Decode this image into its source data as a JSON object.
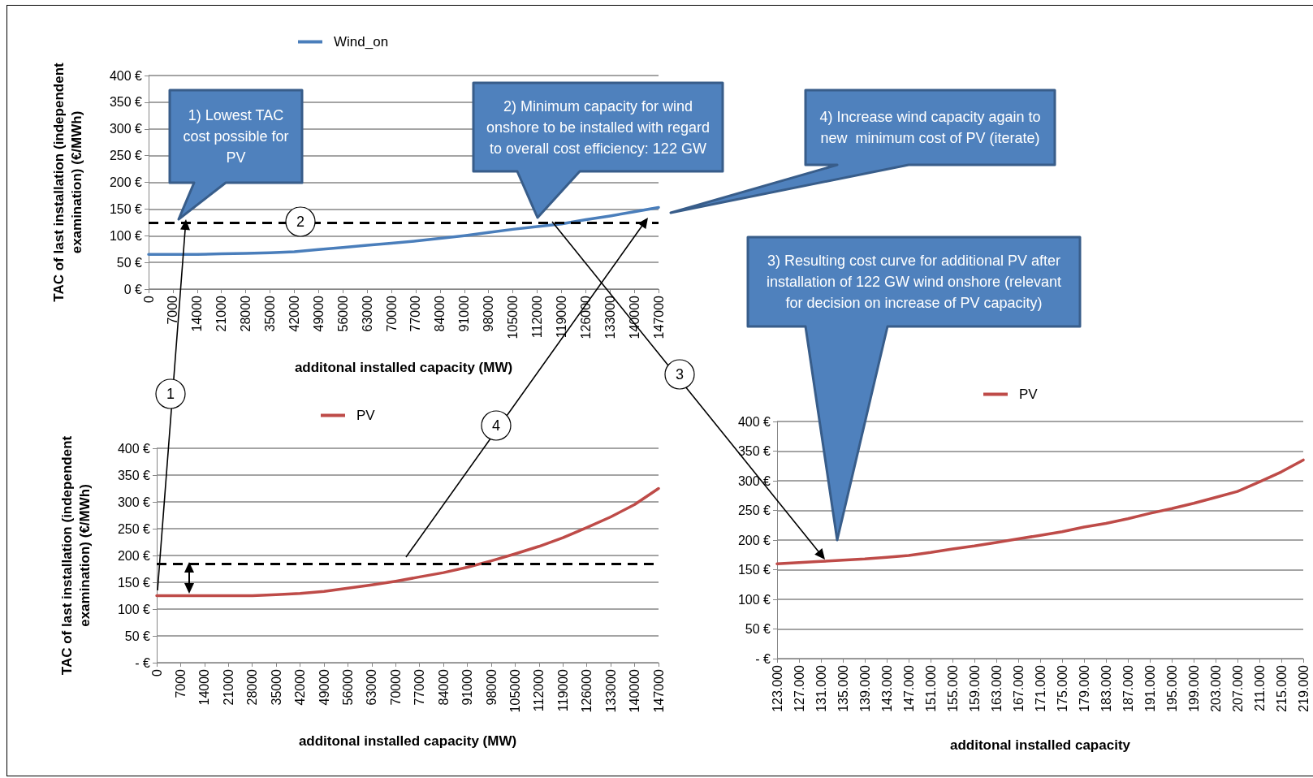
{
  "chart_data": [
    {
      "type": "line",
      "xlabel": "additonal installed capacity (MW)",
      "ylabel": "TAC of last installation (independent examination) (€/MWh)",
      "categories": [
        "0",
        "7000",
        "14000",
        "21000",
        "28000",
        "35000",
        "42000",
        "49000",
        "56000",
        "63000",
        "70000",
        "77000",
        "84000",
        "91000",
        "98000",
        "105000",
        "112000",
        "119000",
        "126000",
        "133000",
        "140000",
        "147000"
      ],
      "series": [
        {
          "name": "Wind_on",
          "color": "#4a7ebb",
          "values": [
            65,
            65,
            65,
            66,
            67,
            68,
            70,
            74,
            78,
            82,
            86,
            90,
            95,
            100,
            106,
            112,
            117,
            122,
            130,
            137,
            145,
            153
          ]
        }
      ],
      "ylim": [
        0,
        400
      ],
      "yticks": [
        {
          "value": 0,
          "label": "0 €"
        },
        {
          "value": 50,
          "label": "50 €"
        },
        {
          "value": 100,
          "label": "100 €"
        },
        {
          "value": 150,
          "label": "150 €"
        },
        {
          "value": 200,
          "label": "200 €"
        },
        {
          "value": 250,
          "label": "250 €"
        },
        {
          "value": 300,
          "label": "300 €"
        },
        {
          "value": 350,
          "label": "350 €"
        },
        {
          "value": 400,
          "label": "400 €"
        }
      ],
      "grid": "y",
      "legend": "top",
      "marker": "none",
      "ref_lines": [
        {
          "axis": "y",
          "value": 125,
          "color": "#000000",
          "line_style": "dashed"
        }
      ],
      "annotations": [
        "1) Lowest TAC cost possible for PV",
        "2) Minimum capacity for wind onshore to be installed with regard to overall cost efficiency: 122 GW",
        "4) Increase wind capacity again to new  minimum cost of PV (iterate)",
        "2"
      ]
    },
    {
      "type": "line",
      "xlabel": "additonal installed capacity (MW)",
      "ylabel": "TAC of last installation (independent examination) (€/MWh)",
      "categories": [
        "0",
        "7000",
        "14000",
        "21000",
        "28000",
        "35000",
        "42000",
        "49000",
        "56000",
        "63000",
        "70000",
        "77000",
        "84000",
        "91000",
        "98000",
        "105000",
        "112000",
        "119000",
        "126000",
        "133000",
        "140000",
        "147000"
      ],
      "series": [
        {
          "name": "PV",
          "color": "#be4b48",
          "values": [
            125,
            125,
            125,
            125,
            125,
            127,
            129,
            133,
            139,
            145,
            152,
            160,
            168,
            178,
            190,
            203,
            217,
            233,
            252,
            272,
            295,
            325
          ]
        }
      ],
      "ylim": [
        0,
        400
      ],
      "yticks": [
        {
          "value": 0,
          "label": "- €"
        },
        {
          "value": 50,
          "label": "50 €"
        },
        {
          "value": 100,
          "label": "100 €"
        },
        {
          "value": 150,
          "label": "150 €"
        },
        {
          "value": 200,
          "label": "200 €"
        },
        {
          "value": 250,
          "label": "250 €"
        },
        {
          "value": 300,
          "label": "300 €"
        },
        {
          "value": 350,
          "label": "350 €"
        },
        {
          "value": 400,
          "label": "400 €"
        }
      ],
      "grid": "y",
      "legend": "top",
      "marker": "none",
      "ref_lines": [
        {
          "axis": "y",
          "value": 185,
          "color": "#000000",
          "line_style": "dashed"
        }
      ],
      "annotations": [
        "1",
        "4"
      ]
    },
    {
      "type": "line",
      "xlabel": "additonal installed capacity",
      "categories": [
        "123.000",
        "127.000",
        "131.000",
        "135.000",
        "139.000",
        "143.000",
        "147.000",
        "151.000",
        "155.000",
        "159.000",
        "163.000",
        "167.000",
        "171.000",
        "175.000",
        "179.000",
        "183.000",
        "187.000",
        "191.000",
        "195.000",
        "199.000",
        "203.000",
        "207.000",
        "211.000",
        "215.000",
        "219.000"
      ],
      "series": [
        {
          "name": "PV",
          "color": "#be4b48",
          "values": [
            160,
            162,
            164,
            166,
            168,
            171,
            174,
            179,
            185,
            190,
            196,
            202,
            208,
            214,
            222,
            228,
            236,
            245,
            253,
            262,
            272,
            282,
            298,
            315,
            335
          ]
        }
      ],
      "ylim": [
        0,
        400
      ],
      "yticks": [
        {
          "value": 0,
          "label": "- €"
        },
        {
          "value": 50,
          "label": "50 €"
        },
        {
          "value": 100,
          "label": "100 €"
        },
        {
          "value": 150,
          "label": "150 €"
        },
        {
          "value": 200,
          "label": "200 €"
        },
        {
          "value": 250,
          "label": "250 €"
        },
        {
          "value": 300,
          "label": "300 €"
        },
        {
          "value": 350,
          "label": "350 €"
        },
        {
          "value": 400,
          "label": "400 €"
        }
      ],
      "grid": "y",
      "legend": "top",
      "marker": "none",
      "annotations": [
        "3) Resulting cost curve for additional PV after installation of 122 GW wind onshore (relevant for decision on increase of PV capacity)",
        "3"
      ]
    }
  ]
}
